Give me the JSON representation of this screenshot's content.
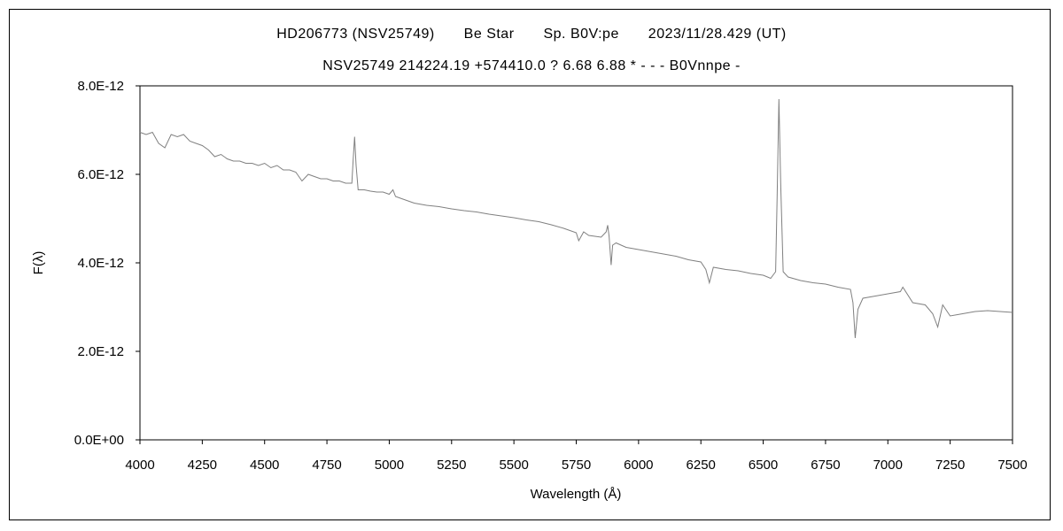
{
  "chart_data": {
    "type": "line",
    "title_parts": [
      "HD206773 (NSV25749)",
      "Be Star",
      "Sp. B0V:pe",
      "2023/11/28.429 (UT)"
    ],
    "subtitle": "NSV25749 214224.19 +574410.0 ? 6.68 6.88 * - - - B0Vnnpe -",
    "xlabel": "Wavelength (Å)",
    "ylabel": "F(λ)",
    "xlim": [
      4000,
      7500
    ],
    "ylim": [
      0,
      8e-12
    ],
    "x_ticks": [
      "4000",
      "4250",
      "4500",
      "4750",
      "5000",
      "5250",
      "5500",
      "5750",
      "6000",
      "6250",
      "6500",
      "6750",
      "7000",
      "7250",
      "7500"
    ],
    "y_ticks": [
      "0.0E+00",
      "2.0E-12",
      "4.0E-12",
      "6.0E-12",
      "8.0E-12"
    ],
    "grid": false,
    "legend": "none",
    "line_color": "#808080",
    "series": [
      {
        "x": [
          4000,
          4025,
          4050,
          4075,
          4100,
          4125,
          4150,
          4175,
          4200,
          4225,
          4250,
          4275,
          4300,
          4325,
          4350,
          4375,
          4400,
          4425,
          4450,
          4475,
          4500,
          4525,
          4550,
          4575,
          4600,
          4625,
          4650,
          4675,
          4700,
          4725,
          4750,
          4775,
          4800,
          4825,
          4850,
          4855,
          4861,
          4867,
          4875,
          4900,
          4925,
          4950,
          4975,
          5000,
          5015,
          5025,
          5050,
          5100,
          5150,
          5200,
          5250,
          5300,
          5350,
          5400,
          5450,
          5500,
          5550,
          5600,
          5650,
          5700,
          5750,
          5760,
          5780,
          5800,
          5850,
          5870,
          5876,
          5882,
          5890,
          5896,
          5910,
          5950,
          6000,
          6050,
          6100,
          6150,
          6200,
          6250,
          6270,
          6284,
          6300,
          6350,
          6400,
          6450,
          6500,
          6530,
          6550,
          6556,
          6563,
          6570,
          6580,
          6600,
          6650,
          6700,
          6750,
          6800,
          6850,
          6860,
          6869,
          6880,
          6900,
          6950,
          7000,
          7050,
          7060,
          7100,
          7150,
          7180,
          7200,
          7220,
          7250,
          7300,
          7350,
          7400,
          7450,
          7500
        ],
        "y": [
          6.95e-12,
          6.9e-12,
          6.95e-12,
          6.7e-12,
          6.6e-12,
          6.9e-12,
          6.85e-12,
          6.9e-12,
          6.75e-12,
          6.7e-12,
          6.65e-12,
          6.55e-12,
          6.4e-12,
          6.45e-12,
          6.35e-12,
          6.3e-12,
          6.3e-12,
          6.25e-12,
          6.25e-12,
          6.2e-12,
          6.25e-12,
          6.15e-12,
          6.2e-12,
          6.1e-12,
          6.1e-12,
          6.05e-12,
          5.85e-12,
          6e-12,
          5.95e-12,
          5.9e-12,
          5.9e-12,
          5.85e-12,
          5.85e-12,
          5.8e-12,
          5.8e-12,
          6.3e-12,
          6.85e-12,
          6.2e-12,
          5.65e-12,
          5.65e-12,
          5.62e-12,
          5.6e-12,
          5.6e-12,
          5.55e-12,
          5.65e-12,
          5.5e-12,
          5.45e-12,
          5.35e-12,
          5.3e-12,
          5.27e-12,
          5.22e-12,
          5.18e-12,
          5.15e-12,
          5.1e-12,
          5.06e-12,
          5.02e-12,
          4.97e-12,
          4.93e-12,
          4.86e-12,
          4.78e-12,
          4.68e-12,
          4.5e-12,
          4.7e-12,
          4.62e-12,
          4.58e-12,
          4.7e-12,
          4.85e-12,
          4.6e-12,
          3.95e-12,
          4.4e-12,
          4.45e-12,
          4.35e-12,
          4.3e-12,
          4.25e-12,
          4.2e-12,
          4.15e-12,
          4.07e-12,
          4.02e-12,
          3.85e-12,
          3.55e-12,
          3.9e-12,
          3.85e-12,
          3.82e-12,
          3.76e-12,
          3.72e-12,
          3.65e-12,
          3.8e-12,
          5.5e-12,
          7.7e-12,
          5.8e-12,
          3.8e-12,
          3.68e-12,
          3.6e-12,
          3.55e-12,
          3.52e-12,
          3.45e-12,
          3.4e-12,
          3.1e-12,
          2.3e-12,
          2.95e-12,
          3.2e-12,
          3.25e-12,
          3.3e-12,
          3.35e-12,
          3.45e-12,
          3.1e-12,
          3.05e-12,
          2.85e-12,
          2.55e-12,
          3.05e-12,
          2.8e-12,
          2.85e-12,
          2.9e-12,
          2.92e-12,
          2.9e-12,
          2.88e-12
        ]
      }
    ]
  }
}
